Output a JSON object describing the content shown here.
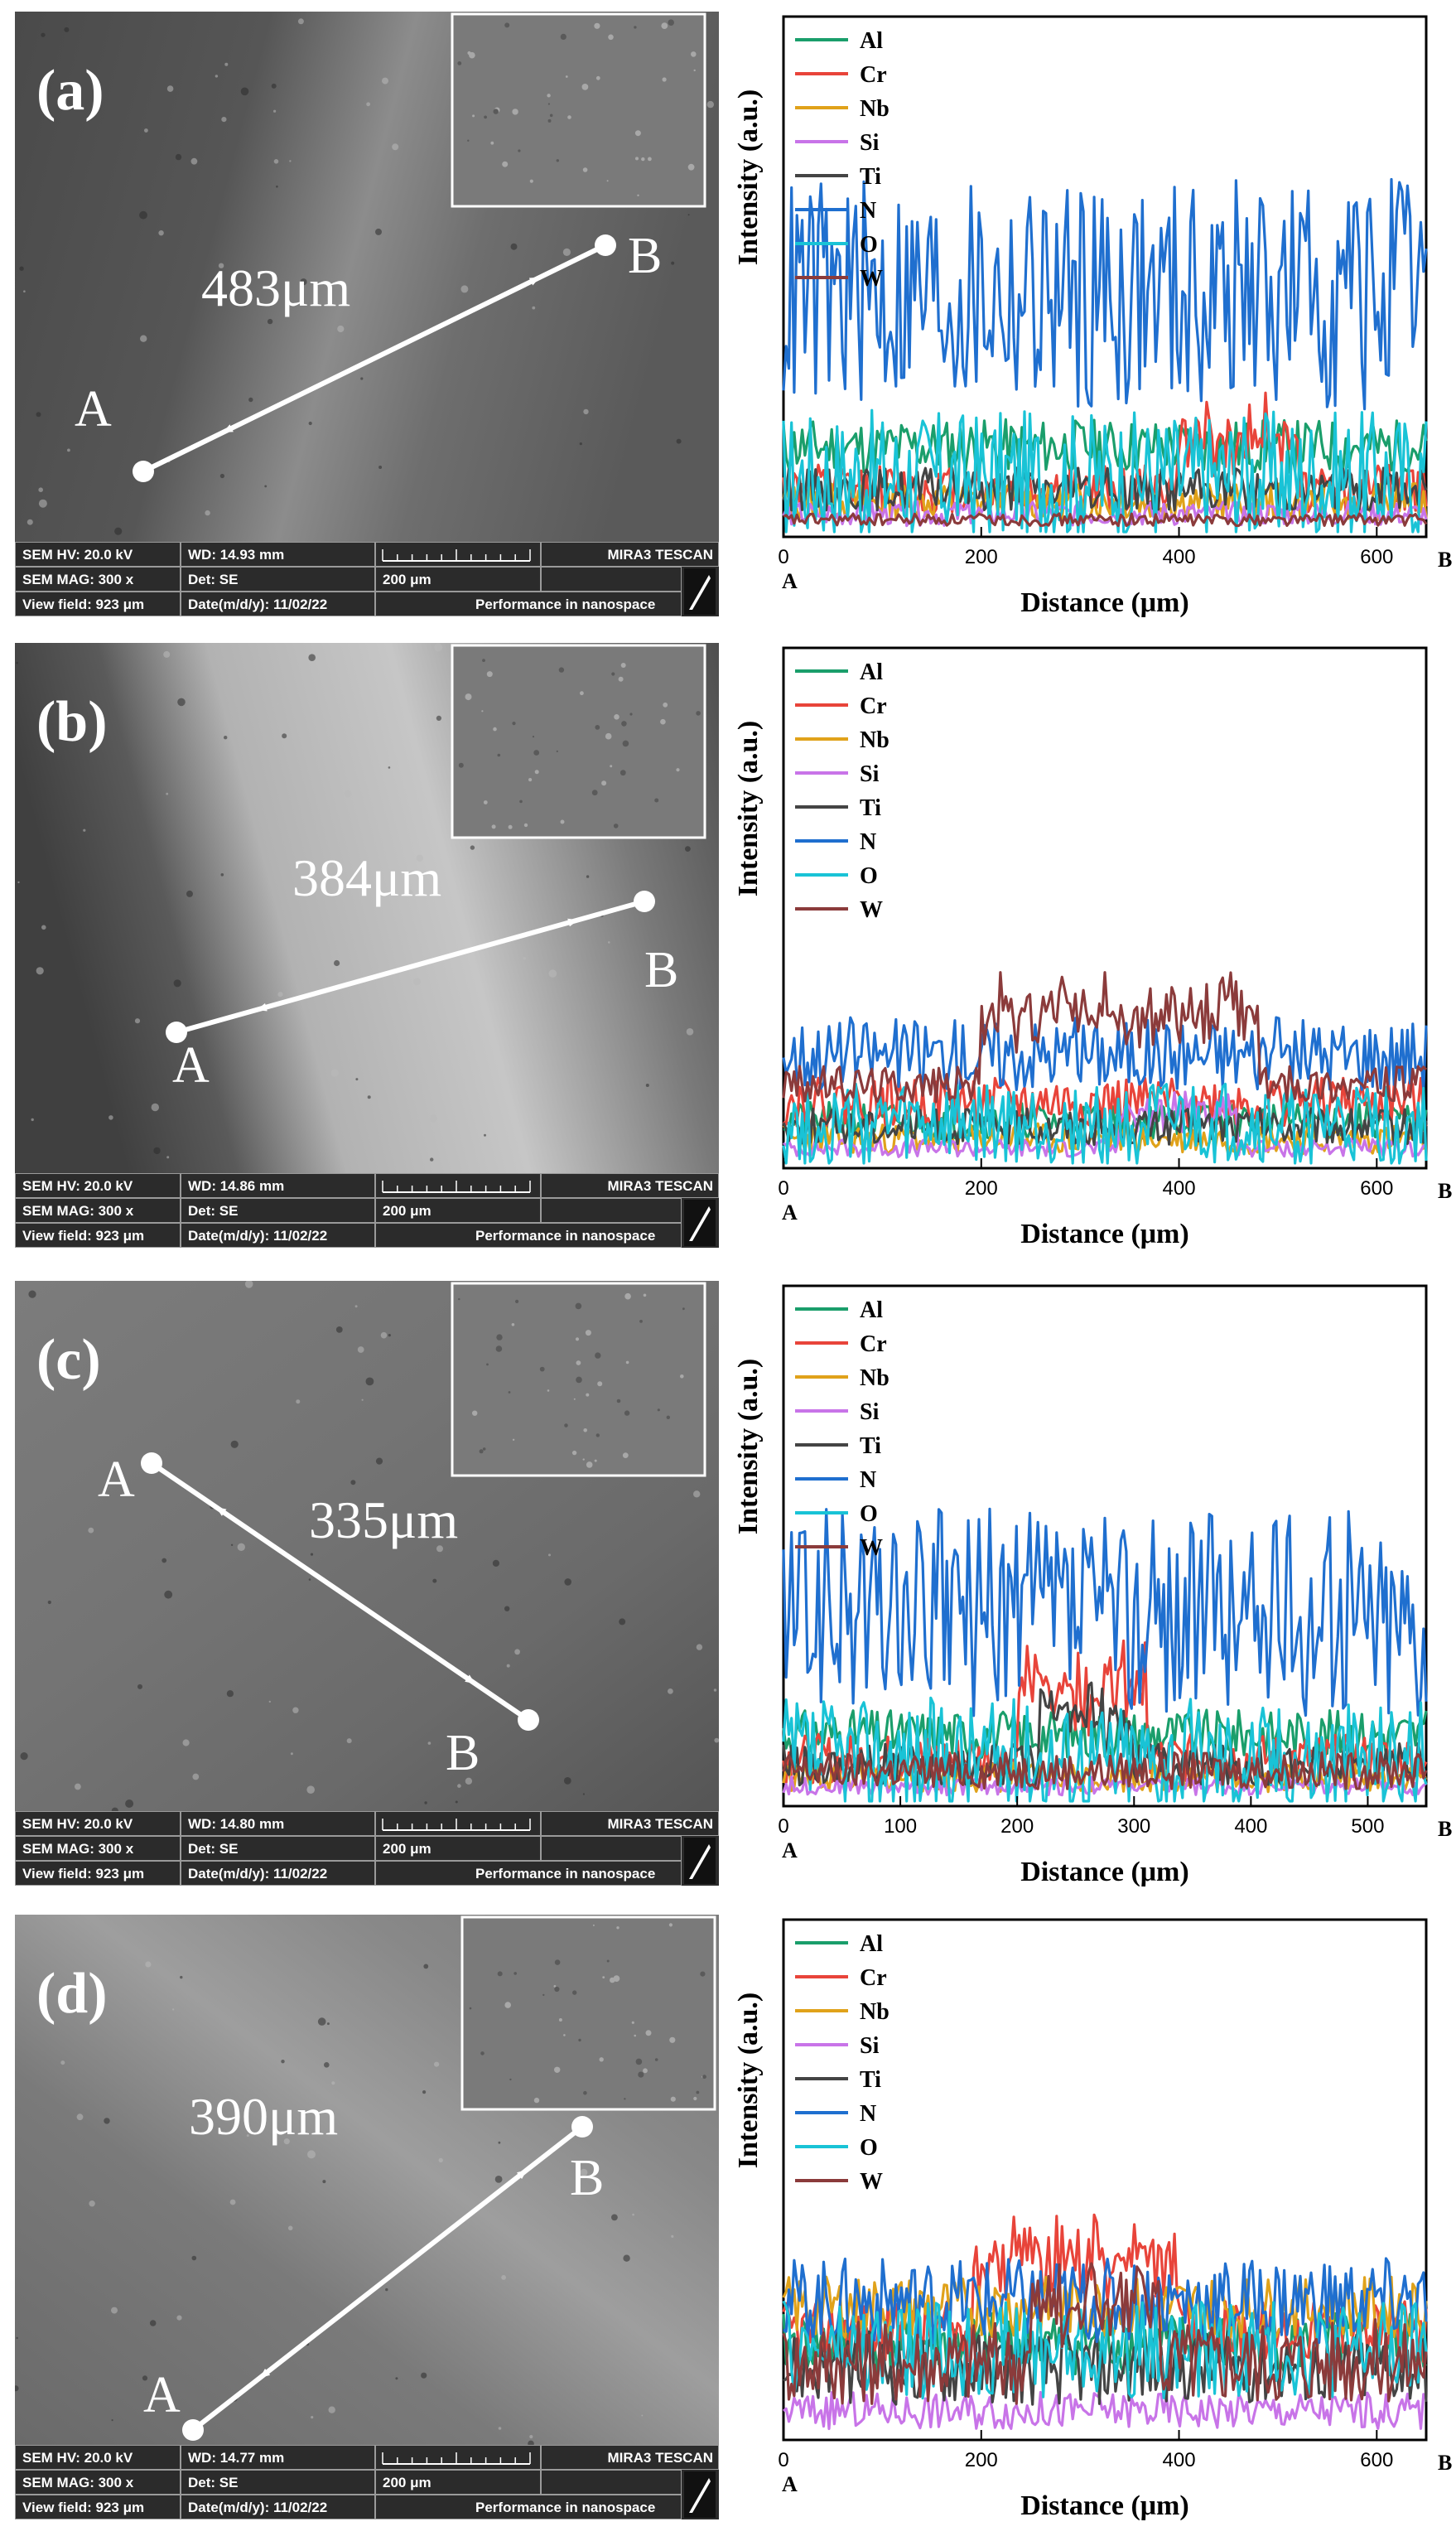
{
  "panels": [
    {
      "label": "(a)",
      "measurement": "483μm",
      "point_a": "A",
      "point_b": "B",
      "sem": {
        "hv": "SEM HV: 20.0 kV",
        "wd": "WD: 14.93 mm",
        "mag": "SEM MAG: 300 x",
        "det": "Det: SE",
        "scale": "200 μm",
        "field": "View field: 923 μm",
        "date": "Date(m/d/y): 11/02/22",
        "brand": "MIRA3 TESCAN",
        "slogan": "Performance in nanospace"
      },
      "chart_data": {
        "type": "line",
        "xlabel": "Distance (μm)",
        "ylabel": "Intensity (a.u.)",
        "x_ticks": [
          "0",
          "200",
          "400",
          "600"
        ],
        "x_start_label": "A",
        "x_end_label": "B",
        "xlim": [
          0,
          650
        ],
        "ylim": [
          0,
          100
        ],
        "legend": [
          "Al",
          "Cr",
          "Nb",
          "Si",
          "Ti",
          "N",
          "O",
          "W"
        ],
        "series": [
          {
            "name": "Al",
            "color": "#1a9e6b",
            "base": 28,
            "amp": 9,
            "seed": 11,
            "bumps": []
          },
          {
            "name": "Cr",
            "color": "#e8443a",
            "base": 14,
            "amp": 8,
            "seed": 12,
            "bumps": [
              [
                400,
                520,
                22
              ]
            ]
          },
          {
            "name": "Nb",
            "color": "#e0a21a",
            "base": 10,
            "amp": 6,
            "seed": 13,
            "bumps": []
          },
          {
            "name": "Si",
            "color": "#c874e8",
            "base": 6,
            "amp": 4,
            "seed": 14,
            "bumps": []
          },
          {
            "name": "Ti",
            "color": "#444444",
            "base": 14,
            "amp": 7,
            "seed": 15,
            "bumps": []
          },
          {
            "name": "N",
            "color": "#1f6fcf",
            "base": 78,
            "amp": 38,
            "seed": 16,
            "bumps": []
          },
          {
            "name": "O",
            "color": "#19c3d6",
            "base": 18,
            "amp": 22,
            "seed": 17,
            "bumps": []
          },
          {
            "name": "W",
            "color": "#8b3b3b",
            "base": 4,
            "amp": 2,
            "seed": 18,
            "bumps": []
          }
        ]
      }
    },
    {
      "label": "(b)",
      "measurement": "384μm",
      "point_a": "A",
      "point_b": "B",
      "sem": {
        "hv": "SEM HV: 20.0 kV",
        "wd": "WD: 14.86 mm",
        "mag": "SEM MAG: 300 x",
        "det": "Det: SE",
        "scale": "200 μm",
        "field": "View field: 923 μm",
        "date": "Date(m/d/y): 11/02/22",
        "brand": "MIRA3 TESCAN",
        "slogan": "Performance in nanospace"
      },
      "chart_data": {
        "type": "line",
        "xlabel": "Distance (μm)",
        "ylabel": "Intensity (a.u.)",
        "x_ticks": [
          "0",
          "200",
          "400",
          "600"
        ],
        "x_start_label": "A",
        "x_end_label": "B",
        "xlim": [
          0,
          650
        ],
        "ylim": [
          0,
          100
        ],
        "legend": [
          "Al",
          "Cr",
          "Nb",
          "Si",
          "Ti",
          "N",
          "O",
          "W"
        ],
        "series": [
          {
            "name": "Al",
            "color": "#1a9e6b",
            "base": 14,
            "amp": 6,
            "seed": 21,
            "bumps": []
          },
          {
            "name": "Cr",
            "color": "#e8443a",
            "base": 20,
            "amp": 8,
            "seed": 22,
            "bumps": []
          },
          {
            "name": "Nb",
            "color": "#e0a21a",
            "base": 8,
            "amp": 5,
            "seed": 23,
            "bumps": []
          },
          {
            "name": "Si",
            "color": "#c874e8",
            "base": 5,
            "amp": 3,
            "seed": 24,
            "bumps": [
              [
                340,
                460,
                15
              ]
            ]
          },
          {
            "name": "Ti",
            "color": "#444444",
            "base": 12,
            "amp": 6,
            "seed": 25,
            "bumps": []
          },
          {
            "name": "N",
            "color": "#1f6fcf",
            "base": 36,
            "amp": 12,
            "seed": 26,
            "bumps": []
          },
          {
            "name": "O",
            "color": "#19c3d6",
            "base": 12,
            "amp": 14,
            "seed": 27,
            "bumps": []
          },
          {
            "name": "W",
            "color": "#8b3b3b",
            "base": 26,
            "amp": 6,
            "seed": 28,
            "bumps": [
              [
                200,
                480,
                30
              ]
            ]
          }
        ]
      }
    },
    {
      "label": "(c)",
      "measurement": "335μm",
      "point_a": "A",
      "point_b": "B",
      "sem": {
        "hv": "SEM HV: 20.0 kV",
        "wd": "WD: 14.80 mm",
        "mag": "SEM MAG: 300 x",
        "det": "Det: SE",
        "scale": "200 μm",
        "field": "View field: 923 μm",
        "date": "Date(m/d/y): 11/02/22",
        "brand": "MIRA3 TESCAN",
        "slogan": "Performance in nanospace"
      },
      "chart_data": {
        "type": "line",
        "xlabel": "Distance (μm)",
        "ylabel": "Intensity (a.u.)",
        "x_ticks": [
          "0",
          "100",
          "200",
          "300",
          "400",
          "500"
        ],
        "x_start_label": "A",
        "x_end_label": "B",
        "xlim": [
          0,
          550
        ],
        "ylim": [
          0,
          100
        ],
        "legend": [
          "Al",
          "Cr",
          "Nb",
          "Si",
          "Ti",
          "N",
          "O",
          "W"
        ],
        "series": [
          {
            "name": "Al",
            "color": "#1a9e6b",
            "base": 22,
            "amp": 8,
            "seed": 31,
            "bumps": []
          },
          {
            "name": "Cr",
            "color": "#e8443a",
            "base": 14,
            "amp": 8,
            "seed": 32,
            "bumps": [
              [
                200,
                310,
                30
              ]
            ]
          },
          {
            "name": "Nb",
            "color": "#e0a21a",
            "base": 8,
            "amp": 5,
            "seed": 33,
            "bumps": []
          },
          {
            "name": "Si",
            "color": "#c874e8",
            "base": 5,
            "amp": 3,
            "seed": 34,
            "bumps": []
          },
          {
            "name": "Ti",
            "color": "#444444",
            "base": 12,
            "amp": 7,
            "seed": 35,
            "bumps": [
              [
                220,
                300,
                20
              ]
            ]
          },
          {
            "name": "N",
            "color": "#1f6fcf",
            "base": 62,
            "amp": 34,
            "seed": 36,
            "bumps": []
          },
          {
            "name": "O",
            "color": "#19c3d6",
            "base": 14,
            "amp": 20,
            "seed": 37,
            "bumps": []
          },
          {
            "name": "W",
            "color": "#8b3b3b",
            "base": 10,
            "amp": 6,
            "seed": 38,
            "bumps": []
          }
        ]
      }
    },
    {
      "label": "(d)",
      "measurement": "390μm",
      "point_a": "A",
      "point_b": "B",
      "sem": {
        "hv": "SEM HV: 20.0 kV",
        "wd": "WD: 14.77 mm",
        "mag": "SEM MAG: 300 x",
        "det": "Det: SE",
        "scale": "200 μm",
        "field": "View field: 923 μm",
        "date": "Date(m/d/y): 11/02/22",
        "brand": "MIRA3 TESCAN",
        "slogan": "Performance in nanospace"
      },
      "chart_data": {
        "type": "line",
        "xlabel": "Distance (μm)",
        "ylabel": "Intensity (a.u.)",
        "x_ticks": [
          "0",
          "200",
          "400",
          "600"
        ],
        "x_start_label": "A",
        "x_end_label": "B",
        "xlim": [
          0,
          650
        ],
        "ylim": [
          0,
          100
        ],
        "legend": [
          "Al",
          "Cr",
          "Nb",
          "Si",
          "Ti",
          "N",
          "O",
          "W"
        ],
        "series": [
          {
            "name": "Al",
            "color": "#1a9e6b",
            "base": 30,
            "amp": 10,
            "seed": 41,
            "bumps": []
          },
          {
            "name": "Cr",
            "color": "#e8443a",
            "base": 34,
            "amp": 10,
            "seed": 42,
            "bumps": [
              [
                190,
                400,
                30
              ]
            ]
          },
          {
            "name": "Nb",
            "color": "#e0a21a",
            "base": 42,
            "amp": 10,
            "seed": 43,
            "bumps": []
          },
          {
            "name": "Si",
            "color": "#c874e8",
            "base": 8,
            "amp": 6,
            "seed": 44,
            "bumps": []
          },
          {
            "name": "Ti",
            "color": "#444444",
            "base": 22,
            "amp": 12,
            "seed": 45,
            "bumps": []
          },
          {
            "name": "N",
            "color": "#1f6fcf",
            "base": 44,
            "amp": 14,
            "seed": 46,
            "bumps": []
          },
          {
            "name": "O",
            "color": "#19c3d6",
            "base": 28,
            "amp": 16,
            "seed": 47,
            "bumps": []
          },
          {
            "name": "W",
            "color": "#8b3b3b",
            "base": 24,
            "amp": 14,
            "seed": 48,
            "bumps": [
              [
                250,
                380,
                25
              ]
            ]
          }
        ]
      }
    }
  ]
}
